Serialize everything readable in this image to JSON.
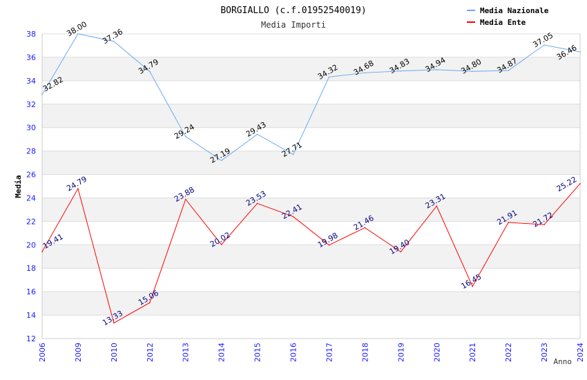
{
  "chart_data": {
    "type": "line",
    "title": "BORGIALLO (c.f.01952540019)",
    "subtitle": "Media Importi",
    "xlabel": "Anno",
    "ylabel": "Media",
    "ylim": [
      12,
      38
    ],
    "yticks": [
      12,
      14,
      16,
      18,
      20,
      22,
      24,
      26,
      28,
      30,
      32,
      34,
      36,
      38
    ],
    "grid": true,
    "legend_position": "top-right",
    "categories": [
      "2006",
      "2009",
      "2010",
      "2012",
      "2013",
      "2014",
      "2015",
      "2016",
      "2017",
      "2018",
      "2019",
      "2020",
      "2021",
      "2022",
      "2023",
      "2024"
    ],
    "series": [
      {
        "name": "Media Nazionale",
        "color": "#6aaaf0",
        "label_color": "#000000",
        "values": [
          32.82,
          38.0,
          37.36,
          34.79,
          29.24,
          27.19,
          29.43,
          27.71,
          34.32,
          34.68,
          34.83,
          34.94,
          34.8,
          34.87,
          37.05,
          36.46
        ]
      },
      {
        "name": "Media Ente",
        "color": "#ff0000",
        "label_color": "#000080",
        "values": [
          19.41,
          24.79,
          13.33,
          15.06,
          23.88,
          20.02,
          23.53,
          22.41,
          19.98,
          21.46,
          19.4,
          23.31,
          16.45,
          21.91,
          21.72,
          25.22
        ]
      }
    ]
  }
}
